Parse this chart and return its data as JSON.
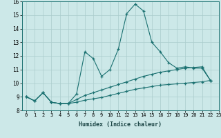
{
  "xlabel": "Humidex (Indice chaleur)",
  "xlim": [
    -0.5,
    23
  ],
  "ylim": [
    8,
    16
  ],
  "xticks": [
    0,
    1,
    2,
    3,
    4,
    5,
    6,
    7,
    8,
    9,
    10,
    11,
    12,
    13,
    14,
    15,
    16,
    17,
    18,
    19,
    20,
    21,
    22,
    23
  ],
  "yticks": [
    8,
    9,
    10,
    11,
    12,
    13,
    14,
    15,
    16
  ],
  "bg_color": "#cce8e8",
  "grid_color": "#aacccc",
  "line_color": "#1a7070",
  "line1_x": [
    0,
    1,
    2,
    3,
    4,
    5,
    6,
    7,
    8,
    9,
    10,
    11,
    12,
    13,
    14,
    15,
    16,
    17,
    18,
    19,
    20,
    21,
    22
  ],
  "line1_y": [
    9.0,
    8.7,
    9.3,
    8.6,
    8.5,
    8.5,
    9.2,
    12.3,
    11.8,
    10.5,
    11.0,
    12.5,
    15.1,
    15.8,
    15.3,
    13.0,
    12.3,
    11.5,
    11.1,
    11.2,
    11.1,
    11.1,
    10.2
  ],
  "line2_x": [
    0,
    1,
    2,
    3,
    4,
    5,
    6,
    7,
    8,
    9,
    10,
    11,
    12,
    13,
    14,
    15,
    16,
    17,
    18,
    19,
    20,
    21,
    22
  ],
  "line2_y": [
    9.0,
    8.7,
    9.3,
    8.6,
    8.5,
    8.5,
    8.8,
    9.1,
    9.3,
    9.5,
    9.7,
    9.9,
    10.1,
    10.3,
    10.5,
    10.65,
    10.8,
    10.9,
    11.0,
    11.1,
    11.15,
    11.2,
    10.2
  ],
  "line3_x": [
    0,
    1,
    2,
    3,
    4,
    5,
    6,
    7,
    8,
    9,
    10,
    11,
    12,
    13,
    14,
    15,
    16,
    17,
    18,
    19,
    20,
    21,
    22
  ],
  "line3_y": [
    9.0,
    8.7,
    9.3,
    8.6,
    8.5,
    8.5,
    8.6,
    8.75,
    8.85,
    8.95,
    9.1,
    9.25,
    9.4,
    9.55,
    9.65,
    9.75,
    9.85,
    9.9,
    9.95,
    10.0,
    10.05,
    10.1,
    10.2
  ]
}
